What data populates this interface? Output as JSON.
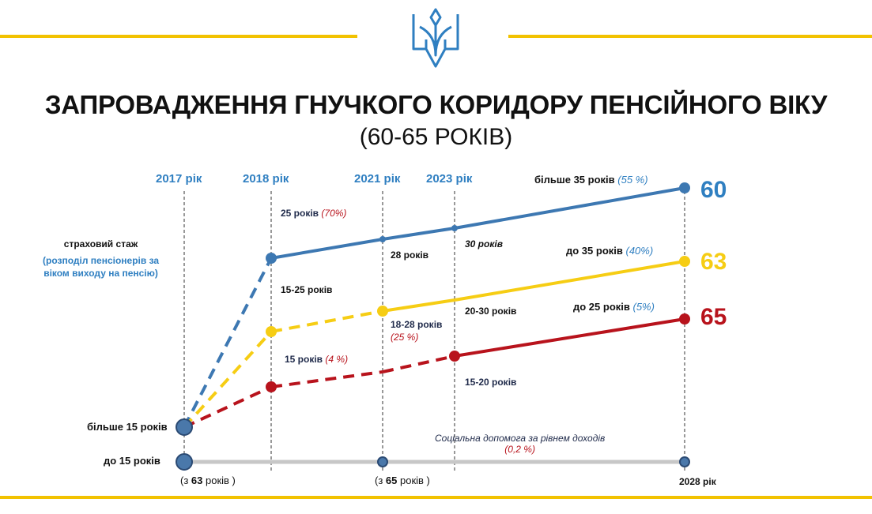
{
  "title_line1": "ЗАПРОВАДЖЕННЯ ГНУЧКОГО КОРИДОРУ ПЕНСІЙНОГО ВІКУ",
  "title_line2": "(60-65 РОКІВ)",
  "colors": {
    "gold": "#f2c200",
    "blue": "#3d78b2",
    "yellow": "#f6cd14",
    "red": "#b8131c",
    "gray": "#c7c7c7",
    "navy": "#1f2a4a",
    "accent_blue": "#2f7fc1"
  },
  "icons": {
    "emblem": "trident-icon"
  },
  "side_label": {
    "line1": "страховий стаж",
    "line2": "(розподіл пенсіонерів за",
    "line3": "віком виходу на пенсію)"
  },
  "age_labels": {
    "a60": "60",
    "a63": "63",
    "a65": "65"
  },
  "labels": {
    "more15": "більше 15 років",
    "upto15": "до 15 років",
    "from63_pre": "(з ",
    "from63_num": "63",
    "from63_post": " років )",
    "from65_pre": "(з ",
    "from65_num": "65",
    "from65_post": " років )",
    "y2028": "2028 рік",
    "blue2018": "25 років",
    "blue2018_pct": "(70%)",
    "yellow2018": "15-25 років",
    "red2018": "15 років",
    "red2018_pct": "(4 %)",
    "blue2021": "28 років",
    "yellow2021": "18-28 років",
    "yellow2021_pct": "(25 %)",
    "blue2023": "30 років",
    "yellow2023": "20-30 років",
    "red2023": "15-20 років",
    "blue_end": "більше 35 років",
    "blue_end_pct": "(55 %)",
    "yellow_end": "до 35 років",
    "yellow_end_pct": "(40%)",
    "red_end": "до 25 років",
    "red_end_pct": "(5%)",
    "social1": "Соціальна допомога за рівнем доходів",
    "social2": "(0,2 %)"
  },
  "chart_data": {
    "type": "line",
    "x_ticks": [
      "2017 рік",
      "2018 рік",
      "2021 рік",
      "2023 рік"
    ],
    "x": [
      2017,
      2018,
      2021,
      2023,
      2028
    ],
    "series": [
      {
        "key": "blue",
        "age": 60,
        "values": [
          16,
          25,
          28,
          30,
          35
        ],
        "dashed_until": 2018,
        "markers": [
          2017,
          2018,
          2021,
          2023,
          2028
        ]
      },
      {
        "key": "yellow",
        "age": 63,
        "values": [
          16,
          15,
          18,
          20,
          25
        ],
        "dashed_until": 2021,
        "markers": [
          2018,
          2021,
          2028
        ]
      },
      {
        "key": "red",
        "age": 65,
        "values": [
          16,
          10,
          12.5,
          15,
          20
        ],
        "dashed_until": 2023,
        "markers": [
          2018,
          2023,
          2028
        ]
      },
      {
        "key": "gray",
        "age": null,
        "values": [
          0,
          null,
          0,
          null,
          0
        ],
        "dashed_until": 2017,
        "markers": [
          2017,
          2021,
          2028
        ]
      }
    ]
  }
}
